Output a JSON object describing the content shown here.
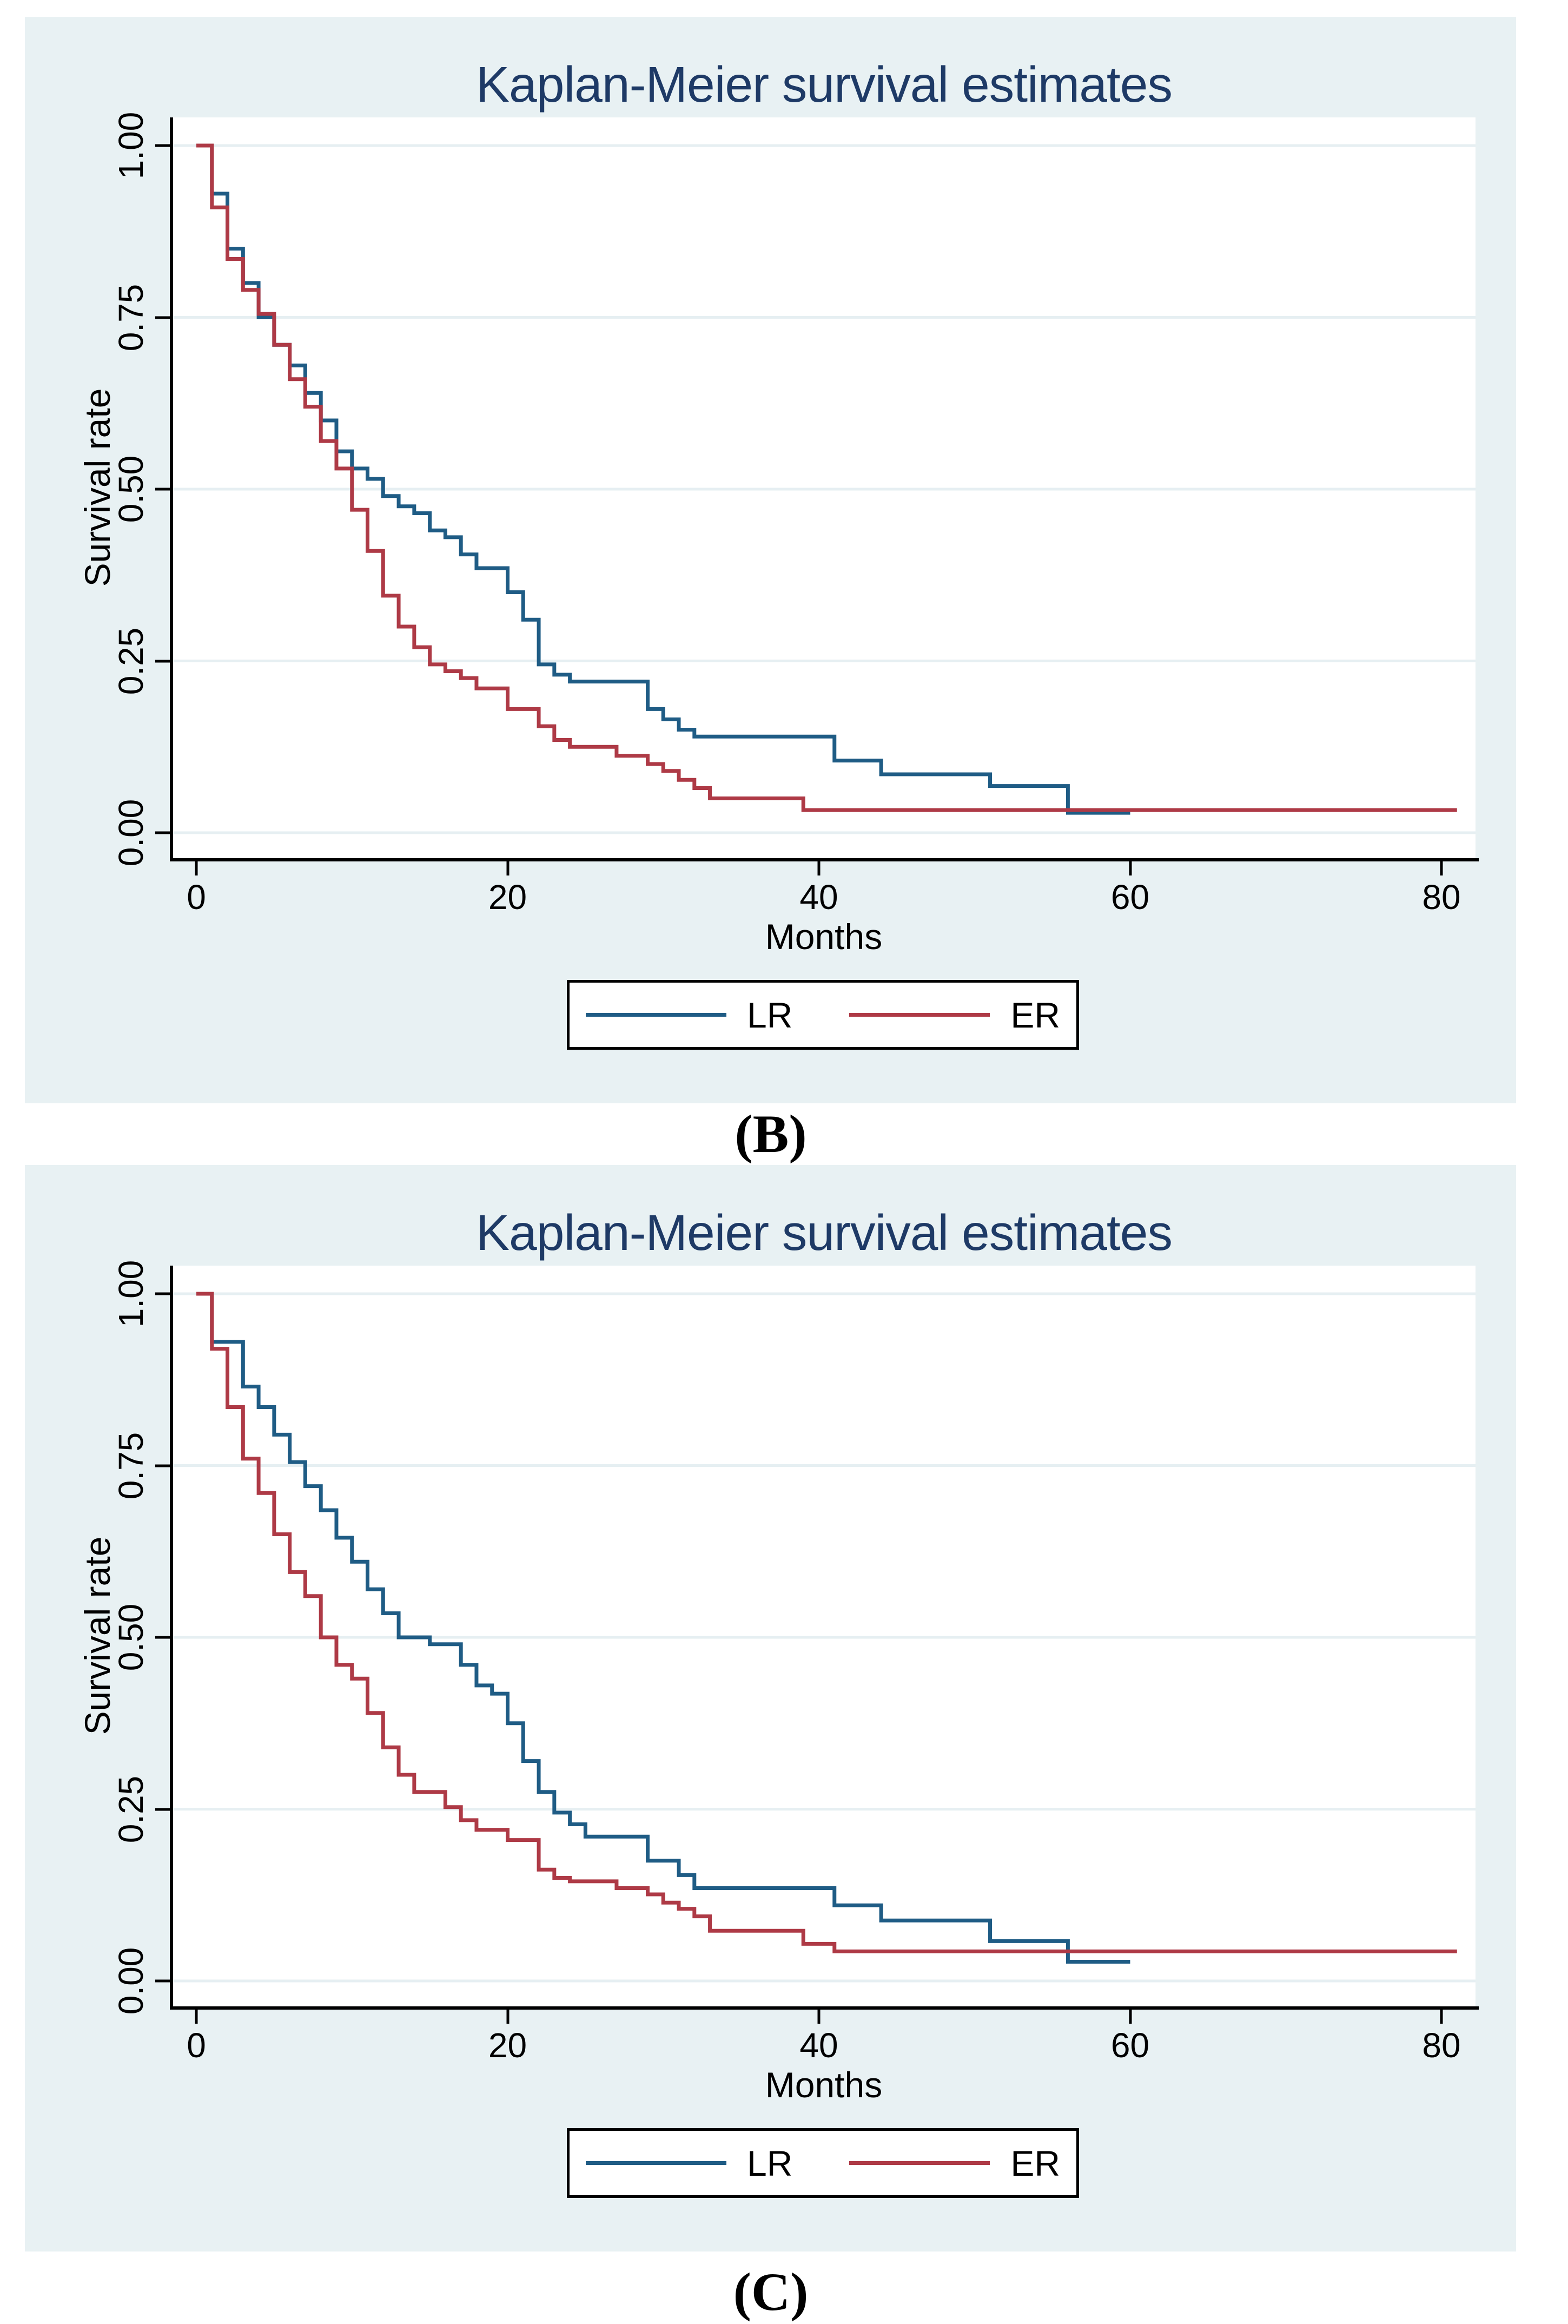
{
  "chart_data": [
    {
      "type": "line",
      "subtype": "kaplan-meier-step",
      "panel_label": "(B)",
      "title": "Kaplan-Meier survival estimates",
      "xlabel": "Months",
      "ylabel": "Survival rate",
      "grid": true,
      "legend_position": "bottom-center",
      "plot_bg": "#ffffff",
      "panel_bg": "#e8f1f3",
      "gridline_color": "#e6eff2",
      "title_color": "#1e3a66",
      "xlim": [
        -1.5,
        82.2
      ],
      "ylim": [
        -0.04,
        1.04
      ],
      "xticks": {
        "values": [
          0,
          20,
          40,
          60,
          80
        ],
        "labels": [
          "0",
          "20",
          "40",
          "60",
          "80"
        ]
      },
      "yticks": {
        "values": [
          0.0,
          0.25,
          0.5,
          0.75,
          1.0
        ],
        "labels": [
          "0.00",
          "0.25",
          "0.50",
          "0.75",
          "1.00"
        ]
      },
      "series": [
        {
          "name": "LR",
          "color": "#1f5c85",
          "points": [
            [
              0,
              1.0
            ],
            [
              1,
              0.93
            ],
            [
              2,
              0.85
            ],
            [
              3,
              0.8
            ],
            [
              4,
              0.75
            ],
            [
              5,
              0.71
            ],
            [
              6,
              0.68
            ],
            [
              7,
              0.64
            ],
            [
              8,
              0.6
            ],
            [
              9,
              0.555
            ],
            [
              10,
              0.53
            ],
            [
              11,
              0.515
            ],
            [
              12,
              0.49
            ],
            [
              13,
              0.475
            ],
            [
              14,
              0.465
            ],
            [
              15,
              0.44
            ],
            [
              16,
              0.43
            ],
            [
              17,
              0.405
            ],
            [
              18,
              0.385
            ],
            [
              20,
              0.35
            ],
            [
              21,
              0.31
            ],
            [
              22,
              0.245
            ],
            [
              23,
              0.23
            ],
            [
              24,
              0.22
            ],
            [
              29,
              0.18
            ],
            [
              30,
              0.165
            ],
            [
              31,
              0.15
            ],
            [
              32,
              0.14
            ],
            [
              41,
              0.105
            ],
            [
              44,
              0.085
            ],
            [
              51,
              0.068
            ],
            [
              56,
              0.029
            ]
          ],
          "end": 60
        },
        {
          "name": "ER",
          "color": "#ae3a46",
          "points": [
            [
              0,
              1.0
            ],
            [
              1,
              0.91
            ],
            [
              2,
              0.835
            ],
            [
              3,
              0.79
            ],
            [
              4,
              0.755
            ],
            [
              5,
              0.71
            ],
            [
              6,
              0.66
            ],
            [
              7,
              0.62
            ],
            [
              8,
              0.57
            ],
            [
              9,
              0.53
            ],
            [
              10,
              0.47
            ],
            [
              11,
              0.41
            ],
            [
              12,
              0.345
            ],
            [
              13,
              0.3
            ],
            [
              14,
              0.27
            ],
            [
              15,
              0.245
            ],
            [
              16,
              0.235
            ],
            [
              17,
              0.225
            ],
            [
              18,
              0.21
            ],
            [
              20,
              0.18
            ],
            [
              22,
              0.155
            ],
            [
              23,
              0.135
            ],
            [
              24,
              0.125
            ],
            [
              27,
              0.112
            ],
            [
              29,
              0.1
            ],
            [
              30,
              0.09
            ],
            [
              31,
              0.077
            ],
            [
              32,
              0.065
            ],
            [
              33,
              0.05
            ],
            [
              39,
              0.033
            ]
          ],
          "end": 81
        }
      ]
    },
    {
      "type": "line",
      "subtype": "kaplan-meier-step",
      "panel_label": "(C)",
      "title": "Kaplan-Meier survival estimates",
      "xlabel": "Months",
      "ylabel": "Survival rate",
      "grid": true,
      "legend_position": "bottom-center",
      "plot_bg": "#ffffff",
      "panel_bg": "#e8f1f3",
      "gridline_color": "#e6eff2",
      "title_color": "#1e3a66",
      "xlim": [
        -1.5,
        82.2
      ],
      "ylim": [
        -0.04,
        1.04
      ],
      "xticks": {
        "values": [
          0,
          20,
          40,
          60,
          80
        ],
        "labels": [
          "0",
          "20",
          "40",
          "60",
          "80"
        ]
      },
      "yticks": {
        "values": [
          0.0,
          0.25,
          0.5,
          0.75,
          1.0
        ],
        "labels": [
          "0.00",
          "0.25",
          "0.50",
          "0.75",
          "1.00"
        ]
      },
      "series": [
        {
          "name": "LR",
          "color": "#1f5c85",
          "points": [
            [
              0,
              1.0
            ],
            [
              1,
              0.93
            ],
            [
              3,
              0.865
            ],
            [
              4,
              0.835
            ],
            [
              5,
              0.795
            ],
            [
              6,
              0.755
            ],
            [
              7,
              0.72
            ],
            [
              8,
              0.685
            ],
            [
              9,
              0.645
            ],
            [
              10,
              0.61
            ],
            [
              11,
              0.57
            ],
            [
              12,
              0.535
            ],
            [
              13,
              0.5
            ],
            [
              15,
              0.49
            ],
            [
              17,
              0.46
            ],
            [
              18,
              0.43
            ],
            [
              19,
              0.418
            ],
            [
              20,
              0.375
            ],
            [
              21,
              0.32
            ],
            [
              22,
              0.275
            ],
            [
              23,
              0.245
            ],
            [
              24,
              0.228
            ],
            [
              25,
              0.21
            ],
            [
              29,
              0.175
            ],
            [
              31,
              0.154
            ],
            [
              32,
              0.135
            ],
            [
              41,
              0.11
            ],
            [
              44,
              0.088
            ],
            [
              51,
              0.058
            ],
            [
              56,
              0.028
            ]
          ],
          "end": 60
        },
        {
          "name": "ER",
          "color": "#ae3a46",
          "points": [
            [
              0,
              1.0
            ],
            [
              1,
              0.92
            ],
            [
              2,
              0.835
            ],
            [
              3,
              0.76
            ],
            [
              4,
              0.71
            ],
            [
              5,
              0.65
            ],
            [
              6,
              0.595
            ],
            [
              7,
              0.56
            ],
            [
              8,
              0.5
            ],
            [
              9,
              0.46
            ],
            [
              10,
              0.44
            ],
            [
              11,
              0.39
            ],
            [
              12,
              0.34
            ],
            [
              13,
              0.3
            ],
            [
              14,
              0.275
            ],
            [
              16,
              0.253
            ],
            [
              17,
              0.234
            ],
            [
              18,
              0.22
            ],
            [
              20,
              0.205
            ],
            [
              22,
              0.162
            ],
            [
              23,
              0.15
            ],
            [
              24,
              0.145
            ],
            [
              27,
              0.135
            ],
            [
              29,
              0.126
            ],
            [
              30,
              0.114
            ],
            [
              31,
              0.105
            ],
            [
              32,
              0.094
            ],
            [
              33,
              0.073
            ],
            [
              39,
              0.054
            ],
            [
              41,
              0.043
            ]
          ],
          "end": 81
        }
      ]
    }
  ]
}
